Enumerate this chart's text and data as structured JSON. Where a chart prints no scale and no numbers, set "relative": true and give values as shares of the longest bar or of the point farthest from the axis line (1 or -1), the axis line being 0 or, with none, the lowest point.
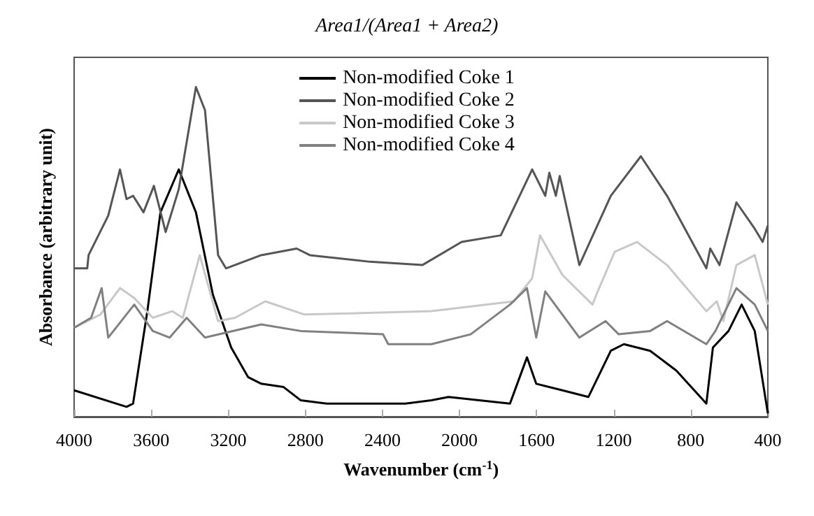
{
  "chart_data": {
    "type": "line",
    "relative": true,
    "xlabel": "Wavenumber (cm$^{-1}$)",
    "ylabel": "Absorbance (arbitrary unit)",
    "annotations": [
      "Area1/(Area1 + Area2)"
    ],
    "xlim": [
      4000,
      400
    ],
    "xticks": [
      4000,
      3600,
      3200,
      2800,
      2400,
      2000,
      1600,
      1200,
      800,
      400
    ],
    "legend": "top",
    "grid": false,
    "series": [
      {
        "name": "Non-modified Coke 1",
        "color": "#000000",
        "x": [
          4000,
          3728,
          3694,
          3620,
          3552,
          3457,
          3368,
          3280,
          3185,
          3097,
          3029,
          2913,
          2825,
          2689,
          2281,
          2146,
          2057,
          1738,
          1650,
          1602,
          1466,
          1331,
          1215,
          1147,
          1011,
          875,
          719,
          685,
          604,
          536,
          468,
          400
        ],
        "values": [
          0.08,
          0.03,
          0.04,
          0.32,
          0.62,
          0.75,
          0.62,
          0.37,
          0.21,
          0.12,
          0.1,
          0.09,
          0.05,
          0.04,
          0.04,
          0.05,
          0.06,
          0.04,
          0.18,
          0.1,
          0.08,
          0.06,
          0.2,
          0.22,
          0.2,
          0.14,
          0.04,
          0.21,
          0.26,
          0.34,
          0.26,
          0.01
        ]
      },
      {
        "name": "Non-modified Coke 2",
        "color": "#555555",
        "x": [
          4000,
          3932,
          3925,
          3823,
          3762,
          3728,
          3694,
          3640,
          3586,
          3525,
          3457,
          3368,
          3321,
          3253,
          3212,
          3029,
          2845,
          2777,
          2465,
          2193,
          1989,
          1786,
          1623,
          1555,
          1534,
          1500,
          1480,
          1378,
          1215,
          1059,
          923,
          719,
          699,
          651,
          563,
          468,
          427,
          400
        ],
        "values": [
          0.45,
          0.45,
          0.49,
          0.61,
          0.75,
          0.66,
          0.67,
          0.62,
          0.7,
          0.56,
          0.69,
          1,
          0.93,
          0.49,
          0.45,
          0.49,
          0.51,
          0.49,
          0.47,
          0.46,
          0.53,
          0.55,
          0.75,
          0.67,
          0.74,
          0.67,
          0.73,
          0.46,
          0.67,
          0.79,
          0.67,
          0.45,
          0.51,
          0.46,
          0.65,
          0.57,
          0.53,
          0.58
        ]
      },
      {
        "name": "Non-modified Coke 3",
        "color": "#c8c8c8",
        "x": [
          4000,
          3864,
          3762,
          3688,
          3592,
          3491,
          3436,
          3348,
          3253,
          3165,
          3008,
          2805,
          2146,
          1718,
          1623,
          1582,
          1466,
          1310,
          1283,
          1195,
          1079,
          923,
          719,
          665,
          631,
          563,
          468,
          400
        ],
        "values": [
          0.27,
          0.31,
          0.39,
          0.36,
          0.3,
          0.32,
          0.3,
          0.49,
          0.29,
          0.3,
          0.35,
          0.31,
          0.32,
          0.35,
          0.42,
          0.55,
          0.43,
          0.34,
          0.38,
          0.5,
          0.53,
          0.46,
          0.32,
          0.35,
          0.29,
          0.46,
          0.49,
          0.34
        ]
      },
      {
        "name": "Non-modified Coke 4",
        "color": "#808080",
        "x": [
          4000,
          3912,
          3857,
          3823,
          3688,
          3592,
          3504,
          3416,
          3321,
          3029,
          2825,
          2397,
          2370,
          2146,
          1942,
          1738,
          1650,
          1602,
          1555,
          1378,
          1242,
          1174,
          1011,
          923,
          719,
          672,
          563,
          468,
          400
        ],
        "values": [
          0.27,
          0.3,
          0.39,
          0.24,
          0.34,
          0.26,
          0.24,
          0.3,
          0.24,
          0.28,
          0.26,
          0.25,
          0.22,
          0.22,
          0.25,
          0.34,
          0.39,
          0.24,
          0.38,
          0.24,
          0.29,
          0.25,
          0.26,
          0.29,
          0.22,
          0.26,
          0.39,
          0.34,
          0.26
        ]
      }
    ]
  }
}
